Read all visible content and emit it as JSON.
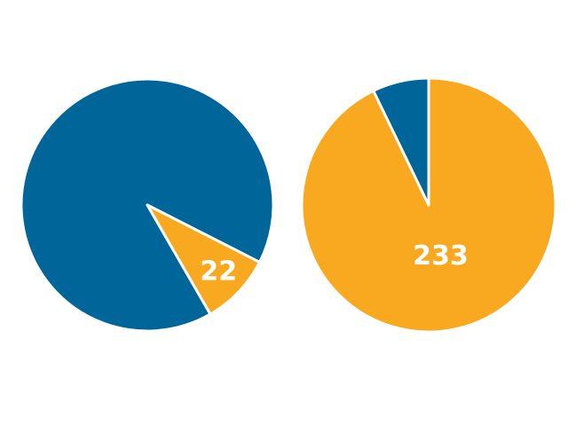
{
  "colors": {
    "blue": "#006699",
    "orange": "#f9a91f",
    "separator": "#ffffff"
  },
  "chart_data": [
    {
      "type": "pie",
      "slices": [
        {
          "value": 218,
          "color": "#006699"
        },
        {
          "value": 22,
          "label": "22",
          "color": "#f9a91f"
        }
      ]
    },
    {
      "type": "pie",
      "slices": [
        {
          "value": 233,
          "label": "233",
          "color": "#f9a91f"
        },
        {
          "value": 18,
          "color": "#006699"
        }
      ]
    }
  ]
}
